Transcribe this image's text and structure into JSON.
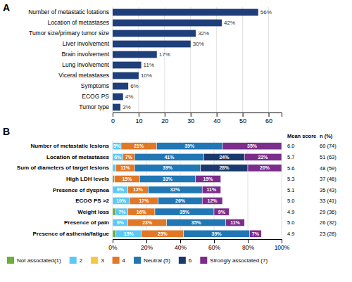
{
  "chart_data": [
    {
      "type": "bar",
      "title": "A",
      "orientation": "horizontal",
      "categories": [
        "Number of metastatic lotations",
        "Location of metastases",
        "Tumor size/primary tumor size",
        "Liver involvement",
        "Brain involvement",
        "Lung involvement",
        "Viceral metastases",
        "Symptoms",
        "ECOG PS",
        "Tumor type"
      ],
      "values": [
        56,
        42,
        32,
        30,
        17,
        11,
        10,
        6,
        4,
        3
      ],
      "value_labels": [
        "56%",
        "42%",
        "32%",
        "30%",
        "17%",
        "11%",
        "10%",
        "6%",
        "4%",
        "3%"
      ],
      "color": "#1F3F7A",
      "xlim": [
        0,
        65
      ],
      "xticks": [
        0,
        10,
        20,
        30,
        40,
        50,
        60
      ],
      "grid": true,
      "data_labels": true
    },
    {
      "type": "bar",
      "title": "B",
      "orientation": "horizontal",
      "stacked": true,
      "categories": [
        "Number of metastatic lesions",
        "Location of metastases",
        "Sum of diameters of target lesions",
        "High LDH levels",
        "Presence of dyspnea",
        "ECOG PS >2",
        "Weight loss",
        "Presence of pain",
        "Presence of asthenia/fatigue"
      ],
      "series": [
        {
          "name": "Not associated(1)",
          "color": "#6AAF3D",
          "values": [
            0,
            0,
            0,
            1,
            0,
            0,
            2,
            0,
            2
          ],
          "value_labels": [
            null,
            null,
            null,
            null,
            null,
            null,
            null,
            null,
            null
          ]
        },
        {
          "name": "2",
          "color": "#5BC8F5",
          "values": [
            5,
            6,
            2,
            0,
            9,
            10,
            7,
            9,
            15
          ],
          "value_labels": [
            "5%",
            "6%",
            null,
            null,
            "9%",
            "10%",
            "7%",
            "9%",
            "15%"
          ]
        },
        {
          "name": "3",
          "color": "#F5C842",
          "values": [
            0,
            0,
            0,
            0,
            0,
            0,
            0,
            0,
            0
          ],
          "value_labels": [
            null,
            null,
            null,
            null,
            null,
            null,
            null,
            null,
            null
          ]
        },
        {
          "name": "4",
          "color": "#E07828",
          "values": [
            21,
            7,
            11,
            15,
            12,
            17,
            16,
            23,
            25
          ],
          "value_labels": [
            "21%",
            "7%",
            "11%",
            "15%",
            "12%",
            "17%",
            "16%",
            "23%",
            "25%"
          ]
        },
        {
          "name": "Neutral (5)",
          "color": "#2176B4",
          "values": [
            39,
            41,
            39,
            33,
            32,
            26,
            35,
            35,
            39
          ],
          "value_labels": [
            "39%",
            "41%",
            "39%",
            "33%",
            "32%",
            "26%",
            "35%",
            "35%",
            "39%"
          ]
        },
        {
          "name": "6",
          "color": "#1A3A6E",
          "values": [
            0,
            24,
            28,
            0,
            0,
            0,
            0,
            0,
            0
          ],
          "value_labels": [
            null,
            "24%",
            "28%",
            null,
            null,
            null,
            null,
            null,
            null
          ]
        },
        {
          "name": "Strongly associated (7)",
          "color": "#7B2D8B",
          "values": [
            35,
            22,
            20,
            15,
            11,
            12,
            9,
            11,
            7
          ],
          "value_labels": [
            "35%",
            "22%",
            "20%",
            "15%",
            "11%",
            "12%",
            "9%",
            "11%",
            "7%"
          ]
        }
      ],
      "xlim": [
        0,
        100
      ],
      "xticks": [
        {
          "value": 0,
          "label": "0%"
        },
        {
          "value": 20,
          "label": "20%"
        },
        {
          "value": 40,
          "label": "40%"
        },
        {
          "value": 60,
          "label": "60%"
        },
        {
          "value": 80,
          "label": "80%"
        },
        {
          "value": 100,
          "label": "100%"
        }
      ],
      "grid": true,
      "data_labels": true,
      "legend": "bottom",
      "columns": [
        {
          "name": "Mean score",
          "values": [
            6.0,
            5.7,
            5.6,
            5.3,
            5.1,
            5.0,
            4.9,
            5.0,
            4.9
          ],
          "value_labels": [
            "6.0",
            "5.7",
            "5.6",
            "5.3",
            "5.1",
            "5.0",
            "4.9",
            "5.0",
            "4.9"
          ]
        },
        {
          "name": "n (%)",
          "labels": [
            "60 (74)",
            "51 (63)",
            "48 (59)",
            "37 (46)",
            "35 (43)",
            "33 (41)",
            "29 (36)",
            "26 (32)",
            "23 (28)"
          ]
        }
      ]
    }
  ]
}
